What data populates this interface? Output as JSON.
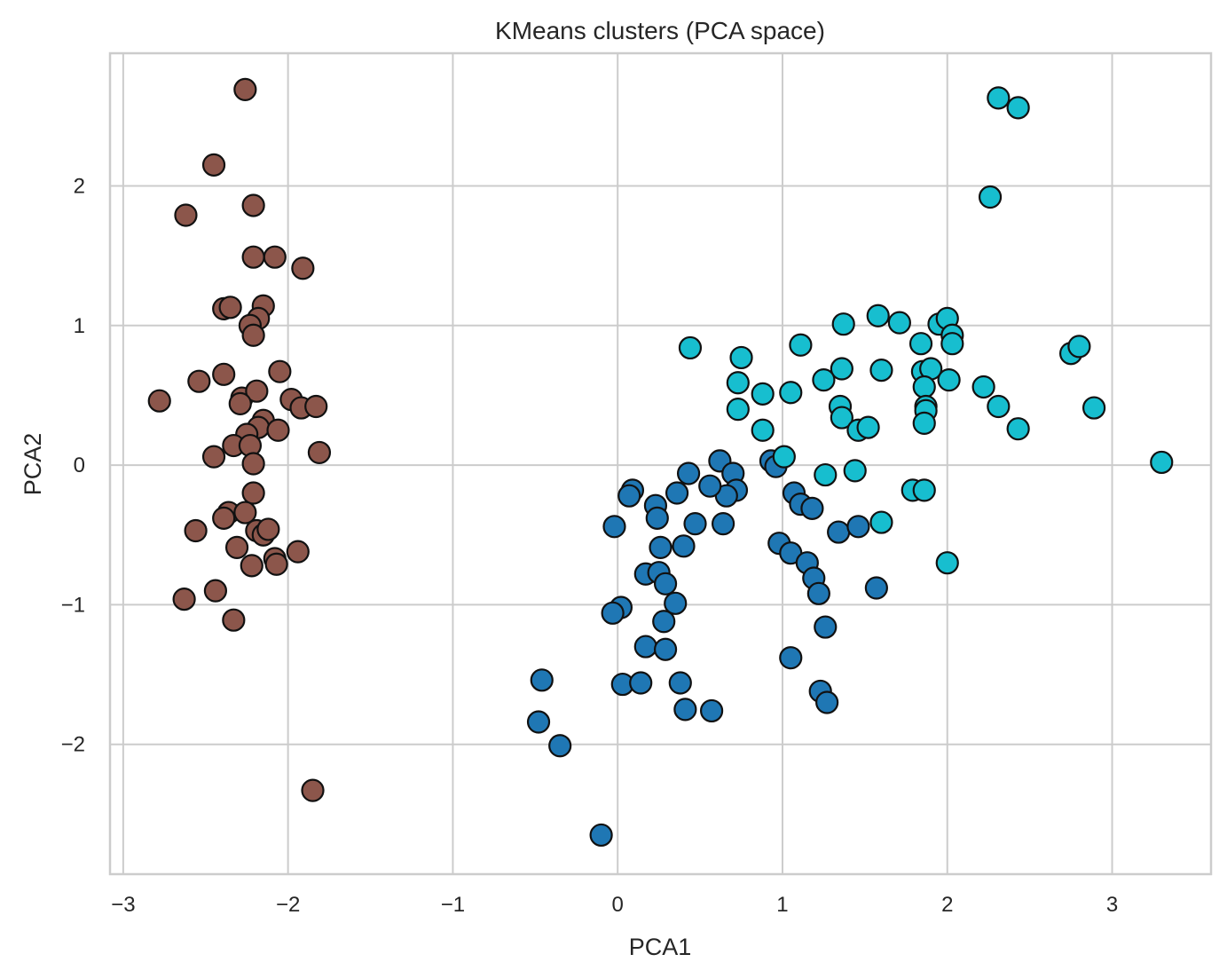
{
  "chart_data": {
    "type": "scatter",
    "title": "KMeans clusters (PCA space)",
    "xlabel": "PCA1",
    "ylabel": "PCA2",
    "xlim": [
      -3.08,
      3.6
    ],
    "ylim": [
      -2.93,
      2.95
    ],
    "xticks": [
      -3,
      -2,
      -1,
      0,
      1,
      2,
      3
    ],
    "xtick_labels": [
      "−3",
      "−2",
      "−1",
      "0",
      "1",
      "2",
      "3"
    ],
    "yticks": [
      -2,
      -1,
      0,
      1,
      2
    ],
    "ytick_labels": [
      "−2",
      "−1",
      "0",
      "1",
      "2"
    ],
    "grid": true,
    "legend": "none",
    "series": [
      {
        "color": "#8c564b",
        "points": [
          [
            -2.26,
            2.69
          ],
          [
            -2.45,
            2.15
          ],
          [
            -2.62,
            1.79
          ],
          [
            -2.21,
            1.86
          ],
          [
            -2.21,
            1.49
          ],
          [
            -2.08,
            1.49
          ],
          [
            -1.91,
            1.41
          ],
          [
            -2.39,
            1.12
          ],
          [
            -2.35,
            1.13
          ],
          [
            -2.15,
            1.14
          ],
          [
            -2.18,
            1.05
          ],
          [
            -2.23,
            1.0
          ],
          [
            -2.21,
            0.93
          ],
          [
            -2.39,
            0.65
          ],
          [
            -2.05,
            0.67
          ],
          [
            -2.54,
            0.6
          ],
          [
            -2.78,
            0.46
          ],
          [
            -2.28,
            0.48
          ],
          [
            -2.19,
            0.53
          ],
          [
            -2.29,
            0.44
          ],
          [
            -1.98,
            0.47
          ],
          [
            -1.92,
            0.41
          ],
          [
            -1.83,
            0.42
          ],
          [
            -2.15,
            0.32
          ],
          [
            -2.18,
            0.27
          ],
          [
            -2.06,
            0.25
          ],
          [
            -2.25,
            0.22
          ],
          [
            -2.33,
            0.14
          ],
          [
            -2.23,
            0.14
          ],
          [
            -1.81,
            0.09
          ],
          [
            -2.45,
            0.06
          ],
          [
            -2.21,
            0.01
          ],
          [
            -2.21,
            -0.2
          ],
          [
            -2.36,
            -0.34
          ],
          [
            -2.39,
            -0.38
          ],
          [
            -2.26,
            -0.34
          ],
          [
            -2.56,
            -0.47
          ],
          [
            -2.19,
            -0.47
          ],
          [
            -2.15,
            -0.5
          ],
          [
            -2.12,
            -0.46
          ],
          [
            -2.31,
            -0.59
          ],
          [
            -1.94,
            -0.62
          ],
          [
            -2.08,
            -0.67
          ],
          [
            -2.22,
            -0.72
          ],
          [
            -2.07,
            -0.71
          ],
          [
            -2.44,
            -0.9
          ],
          [
            -2.63,
            -0.96
          ],
          [
            -2.33,
            -1.11
          ],
          [
            -1.85,
            -2.33
          ]
        ]
      },
      {
        "color": "#1f77b4",
        "points": [
          [
            0.43,
            -0.06
          ],
          [
            0.62,
            0.03
          ],
          [
            0.7,
            -0.06
          ],
          [
            0.72,
            -0.18
          ],
          [
            0.66,
            -0.22
          ],
          [
            0.56,
            -0.15
          ],
          [
            0.36,
            -0.2
          ],
          [
            0.09,
            -0.18
          ],
          [
            0.07,
            -0.22
          ],
          [
            0.23,
            -0.29
          ],
          [
            0.24,
            -0.38
          ],
          [
            -0.02,
            -0.44
          ],
          [
            0.47,
            -0.42
          ],
          [
            0.64,
            -0.42
          ],
          [
            0.26,
            -0.59
          ],
          [
            0.4,
            -0.58
          ],
          [
            0.17,
            -0.78
          ],
          [
            0.25,
            -0.77
          ],
          [
            0.29,
            -0.85
          ],
          [
            0.35,
            -0.99
          ],
          [
            0.28,
            -1.12
          ],
          [
            0.02,
            -1.02
          ],
          [
            -0.03,
            -1.06
          ],
          [
            0.17,
            -1.3
          ],
          [
            0.29,
            -1.32
          ],
          [
            -0.46,
            -1.54
          ],
          [
            0.03,
            -1.57
          ],
          [
            0.14,
            -1.56
          ],
          [
            0.38,
            -1.56
          ],
          [
            0.41,
            -1.75
          ],
          [
            0.57,
            -1.76
          ],
          [
            -0.48,
            -1.84
          ],
          [
            -0.35,
            -2.01
          ],
          [
            -0.1,
            -2.65
          ],
          [
            0.93,
            0.03
          ],
          [
            0.96,
            -0.01
          ],
          [
            1.07,
            -0.2
          ],
          [
            1.11,
            -0.28
          ],
          [
            1.18,
            -0.31
          ],
          [
            0.98,
            -0.56
          ],
          [
            1.05,
            -0.63
          ],
          [
            1.15,
            -0.7
          ],
          [
            1.19,
            -0.81
          ],
          [
            1.22,
            -0.92
          ],
          [
            1.26,
            -1.16
          ],
          [
            1.05,
            -1.38
          ],
          [
            1.23,
            -1.62
          ],
          [
            1.27,
            -1.7
          ],
          [
            1.34,
            -0.48
          ],
          [
            1.46,
            -0.44
          ],
          [
            1.57,
            -0.88
          ]
        ]
      },
      {
        "color": "#17becf",
        "points": [
          [
            2.31,
            2.63
          ],
          [
            2.43,
            2.56
          ],
          [
            2.26,
            1.92
          ],
          [
            1.58,
            1.07
          ],
          [
            1.71,
            1.02
          ],
          [
            1.37,
            1.01
          ],
          [
            1.95,
            1.01
          ],
          [
            2.0,
            1.05
          ],
          [
            2.03,
            0.93
          ],
          [
            2.03,
            0.87
          ],
          [
            1.84,
            0.87
          ],
          [
            1.11,
            0.86
          ],
          [
            0.44,
            0.84
          ],
          [
            0.75,
            0.77
          ],
          [
            2.75,
            0.8
          ],
          [
            2.8,
            0.85
          ],
          [
            1.36,
            0.69
          ],
          [
            1.6,
            0.68
          ],
          [
            1.85,
            0.67
          ],
          [
            1.9,
            0.69
          ],
          [
            0.73,
            0.59
          ],
          [
            0.88,
            0.51
          ],
          [
            1.05,
            0.52
          ],
          [
            1.25,
            0.61
          ],
          [
            1.86,
            0.56
          ],
          [
            2.01,
            0.61
          ],
          [
            2.22,
            0.56
          ],
          [
            0.73,
            0.4
          ],
          [
            1.35,
            0.42
          ],
          [
            1.36,
            0.34
          ],
          [
            1.87,
            0.42
          ],
          [
            1.87,
            0.39
          ],
          [
            2.31,
            0.42
          ],
          [
            2.89,
            0.41
          ],
          [
            0.88,
            0.25
          ],
          [
            1.46,
            0.25
          ],
          [
            1.52,
            0.27
          ],
          [
            1.86,
            0.3
          ],
          [
            2.43,
            0.26
          ],
          [
            1.01,
            0.06
          ],
          [
            3.3,
            0.02
          ],
          [
            1.26,
            -0.07
          ],
          [
            1.44,
            -0.04
          ],
          [
            1.79,
            -0.18
          ],
          [
            1.86,
            -0.18
          ],
          [
            1.6,
            -0.41
          ],
          [
            2.0,
            -0.7
          ]
        ]
      }
    ]
  }
}
